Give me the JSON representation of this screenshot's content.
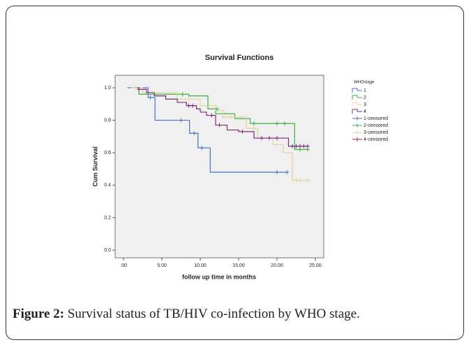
{
  "chart_data": {
    "type": "survival",
    "title": "Survival Functions",
    "x_label": "follow up time in months",
    "y_label": "Cum Survival",
    "xlim": [
      -1.1,
      26.1
    ],
    "ylim": [
      -0.047,
      1.077
    ],
    "xticks": [
      {
        "value": 0,
        "label": ".00"
      },
      {
        "value": 5,
        "label": "5.00"
      },
      {
        "value": 10,
        "label": "10.00"
      },
      {
        "value": 15,
        "label": "15.00"
      },
      {
        "value": 20,
        "label": "20.00"
      },
      {
        "value": 25,
        "label": "25.00"
      }
    ],
    "yticks": [
      {
        "value": 0,
        "label": "0.0"
      },
      {
        "value": 0.2,
        "label": "0.2"
      },
      {
        "value": 0.4,
        "label": "0.4"
      },
      {
        "value": 0.6,
        "label": "0.6"
      },
      {
        "value": 0.8,
        "label": "0.8"
      },
      {
        "value": 1,
        "label": "1.0"
      }
    ],
    "legend_title": "WHOstage",
    "series": [
      {
        "name": "1",
        "color": "#4a6fc0",
        "x": [
          0.5,
          3.2,
          4.1,
          8.6,
          9.7,
          11.3,
          21.3
        ],
        "values": [
          1.0,
          0.94,
          0.8,
          0.72,
          0.63,
          0.48,
          0.48
        ]
      },
      {
        "name": "2",
        "color": "#3cb043",
        "x": [
          0.7,
          2,
          8.5,
          11,
          12,
          14.5,
          16.5,
          22.3,
          24
        ],
        "values": [
          1.0,
          0.96,
          0.95,
          0.87,
          0.84,
          0.81,
          0.78,
          0.62,
          0.62
        ]
      },
      {
        "name": "3",
        "color": "#e3d39a",
        "x": [
          1,
          2.5,
          7,
          10,
          12,
          13,
          16,
          17.5,
          19.5,
          20.8,
          22,
          24
        ],
        "values": [
          1.0,
          0.97,
          0.93,
          0.89,
          0.86,
          0.82,
          0.75,
          0.69,
          0.65,
          0.6,
          0.43,
          0.43
        ]
      },
      {
        "name": "4",
        "color": "#7b2a7b",
        "x": [
          1.5,
          2,
          3,
          4,
          5.5,
          7,
          8.2,
          9.5,
          10,
          10.8,
          12,
          13.5,
          15,
          17,
          21.5,
          24
        ],
        "values": [
          1.0,
          0.99,
          0.97,
          0.95,
          0.93,
          0.91,
          0.89,
          0.87,
          0.85,
          0.83,
          0.77,
          0.74,
          0.73,
          0.69,
          0.64,
          0.64
        ]
      },
      {
        "name": "1-censored",
        "color": "#4a6fc0",
        "censored": true,
        "x": [
          3.5,
          7.5,
          9.2,
          10.2,
          20,
          21.3
        ],
        "values": [
          0.94,
          0.8,
          0.72,
          0.63,
          0.48,
          0.48
        ]
      },
      {
        "name": "2-censored",
        "color": "#3cb043",
        "censored": true,
        "x": [
          7.7,
          12.2,
          17,
          20,
          21,
          23,
          24
        ],
        "values": [
          0.96,
          0.87,
          0.78,
          0.78,
          0.78,
          0.62,
          0.62
        ]
      },
      {
        "name": "3-censored",
        "color": "#e3d39a",
        "censored": true,
        "x": [
          1.5,
          13,
          14,
          17,
          22.5,
          23,
          24
        ],
        "values": [
          1.0,
          0.82,
          0.82,
          0.75,
          0.43,
          0.43,
          0.43
        ]
      },
      {
        "name": "4-censored",
        "color": "#7b2a7b",
        "censored": true,
        "x": [
          2,
          8.5,
          9,
          11.5,
          12.5,
          15.5,
          18,
          19,
          20,
          22,
          22.5,
          23,
          23.5,
          24
        ],
        "values": [
          0.99,
          0.89,
          0.89,
          0.83,
          0.77,
          0.73,
          0.69,
          0.69,
          0.69,
          0.64,
          0.64,
          0.64,
          0.64,
          0.64
        ]
      }
    ]
  },
  "caption": {
    "label": "Figure 2:",
    "text": " Survival status of TB/HIV co-infection by WHO stage."
  }
}
